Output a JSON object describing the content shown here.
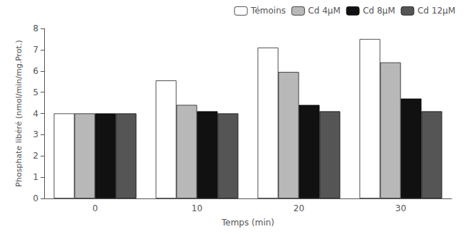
{
  "chart_data": {
    "type": "bar",
    "xlabel": "Temps (min)",
    "ylabel": "Phosphate libéré (nmol/min/mg.Prot.)",
    "categories": [
      "0",
      "10",
      "20",
      "30"
    ],
    "series": [
      {
        "name": "Témoins",
        "color": "#ffffff",
        "values": [
          4.0,
          5.55,
          7.1,
          7.5
        ]
      },
      {
        "name": "Cd 4μM",
        "color": "#b8b8b8",
        "values": [
          4.0,
          4.4,
          5.95,
          6.4
        ]
      },
      {
        "name": "Cd 8μM",
        "color": "#111111",
        "values": [
          4.0,
          4.1,
          4.4,
          4.7
        ]
      },
      {
        "name": "Cd 12μM",
        "color": "#555555",
        "values": [
          4.0,
          4.0,
          4.1,
          4.1
        ]
      }
    ],
    "ylim": [
      0,
      8
    ],
    "yticks": [
      0,
      1,
      2,
      3,
      4,
      5,
      6,
      7,
      8
    ],
    "grid": false,
    "legend": "upper right"
  }
}
